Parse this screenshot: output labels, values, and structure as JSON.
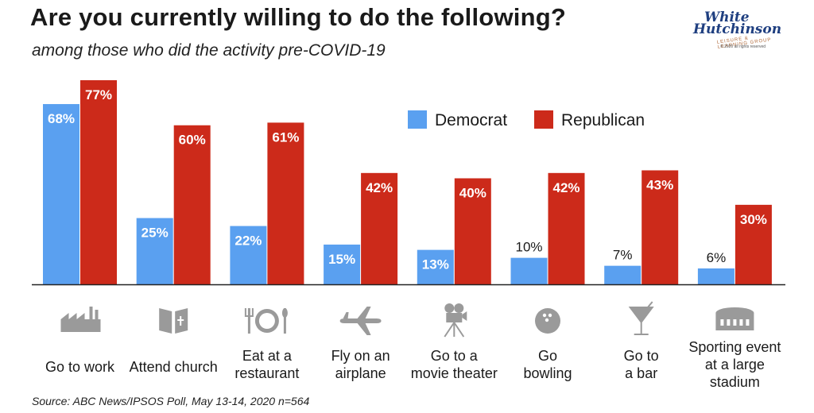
{
  "header": {
    "title": "Are you currently willing to do the following?",
    "subtitle": "among those who did the activity pre-COVID-19"
  },
  "logo": {
    "line1": "White",
    "line2": "Hutchinson",
    "line3": "LEISURE & LEARNING GROUP",
    "line4": "© 2020 all rights reserved"
  },
  "source": "Source: ABC News/IPSOS Poll, May 13-14, 2020 n=564",
  "colors": {
    "democrat": "#5aa0f0",
    "republican": "#cc2a1a",
    "icon": "#9a9a9a"
  },
  "chart_data": {
    "type": "bar",
    "title": "Are you currently willing to do the following?",
    "subtitle": "among those who did the activity pre-COVID-19",
    "ylim": [
      0,
      77
    ],
    "grid": false,
    "legend": "top-right",
    "categories": [
      "Go to work",
      "Attend church",
      "Eat at a restaurant",
      "Fly on an airplane",
      "Go to a movie theater",
      "Go bowling",
      "Go to a bar",
      "Sporting event at a large stadium"
    ],
    "category_lines": [
      [
        "Go to work"
      ],
      [
        "Attend church"
      ],
      [
        "Eat at a",
        "restaurant"
      ],
      [
        "Fly on an",
        "airplane"
      ],
      [
        "Go to a",
        "movie theater"
      ],
      [
        "Go",
        "bowling"
      ],
      [
        "Go to",
        "a bar"
      ],
      [
        "Sporting event",
        "at a large",
        "stadium"
      ]
    ],
    "icons": [
      "factory-icon",
      "bible-icon",
      "plate-icon",
      "airplane-icon",
      "movie-camera-icon",
      "bowling-ball-icon",
      "cocktail-icon",
      "stadium-icon"
    ],
    "series": [
      {
        "name": "Democrat",
        "values": [
          68,
          25,
          22,
          15,
          13,
          10,
          7,
          6
        ],
        "labels": [
          "68%",
          "25%",
          "22%",
          "15%",
          "13%",
          "10%",
          "7%",
          "6%"
        ]
      },
      {
        "name": "Republican",
        "values": [
          77,
          60,
          61,
          42,
          40,
          42,
          43,
          30
        ],
        "labels": [
          "77%",
          "60%",
          "61%",
          "42%",
          "40%",
          "42%",
          "43%",
          "30%"
        ]
      }
    ]
  }
}
